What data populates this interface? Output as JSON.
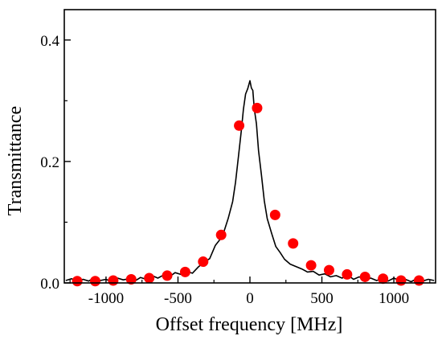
{
  "chart_data": {
    "type": "scatter",
    "xlabel": "Offset frequency [MHz]",
    "ylabel": "Transmittance",
    "xlim": [
      -1290,
      1290
    ],
    "ylim": [
      0,
      0.45
    ],
    "x_ticks": [
      -1000,
      -500,
      0,
      500,
      1000
    ],
    "x_tick_labels": [
      "-1000",
      "-500",
      "0",
      "500",
      "1000"
    ],
    "y_ticks": [
      0.0,
      0.2,
      0.4
    ],
    "y_tick_labels": [
      "0.0",
      "0.2",
      "0.4"
    ],
    "grid": false,
    "legend": "none",
    "series": [
      {
        "kind": "line",
        "color": "#000000",
        "x": [
          -1280,
          -1240,
          -1200,
          -1160,
          -1120,
          -1080,
          -1040,
          -1000,
          -960,
          -920,
          -880,
          -840,
          -800,
          -760,
          -720,
          -680,
          -640,
          -600,
          -560,
          -520,
          -480,
          -440,
          -400,
          -360,
          -320,
          -280,
          -240,
          -210,
          -180,
          -150,
          -120,
          -100,
          -80,
          -60,
          -45,
          -30,
          -15,
          0,
          10,
          20,
          30,
          45,
          60,
          80,
          100,
          120,
          150,
          180,
          210,
          240,
          280,
          320,
          360,
          400,
          440,
          480,
          520,
          560,
          600,
          640,
          680,
          720,
          760,
          800,
          840,
          880,
          920,
          960,
          1000,
          1040,
          1080,
          1120,
          1160,
          1200,
          1240,
          1280
        ],
        "y": [
          0.004,
          0.007,
          0.002,
          0.006,
          0.003,
          0.009,
          0.004,
          0.006,
          0.002,
          0.008,
          0.005,
          0.007,
          0.003,
          0.009,
          0.006,
          0.012,
          0.008,
          0.013,
          0.01,
          0.017,
          0.014,
          0.019,
          0.016,
          0.026,
          0.034,
          0.04,
          0.062,
          0.071,
          0.085,
          0.107,
          0.134,
          0.166,
          0.208,
          0.251,
          0.286,
          0.311,
          0.32,
          0.333,
          0.321,
          0.317,
          0.287,
          0.262,
          0.218,
          0.178,
          0.135,
          0.106,
          0.082,
          0.06,
          0.05,
          0.039,
          0.031,
          0.027,
          0.023,
          0.018,
          0.019,
          0.013,
          0.015,
          0.01,
          0.012,
          0.008,
          0.013,
          0.006,
          0.01,
          0.005,
          0.008,
          0.004,
          0.007,
          0.003,
          0.008,
          0.004,
          0.006,
          0.002,
          0.007,
          0.003,
          0.006,
          0.004
        ]
      },
      {
        "kind": "scatter",
        "color": "#ff0000",
        "x": [
          -1200,
          -1075,
          -950,
          -825,
          -700,
          -575,
          -450,
          -325,
          -200,
          -75,
          50,
          175,
          300,
          425,
          550,
          675,
          800,
          925,
          1050,
          1175
        ],
        "y": [
          0.003,
          0.003,
          0.004,
          0.006,
          0.008,
          0.012,
          0.018,
          0.035,
          0.079,
          0.259,
          0.288,
          0.112,
          0.065,
          0.029,
          0.021,
          0.014,
          0.01,
          0.007,
          0.004,
          0.004
        ]
      }
    ]
  }
}
